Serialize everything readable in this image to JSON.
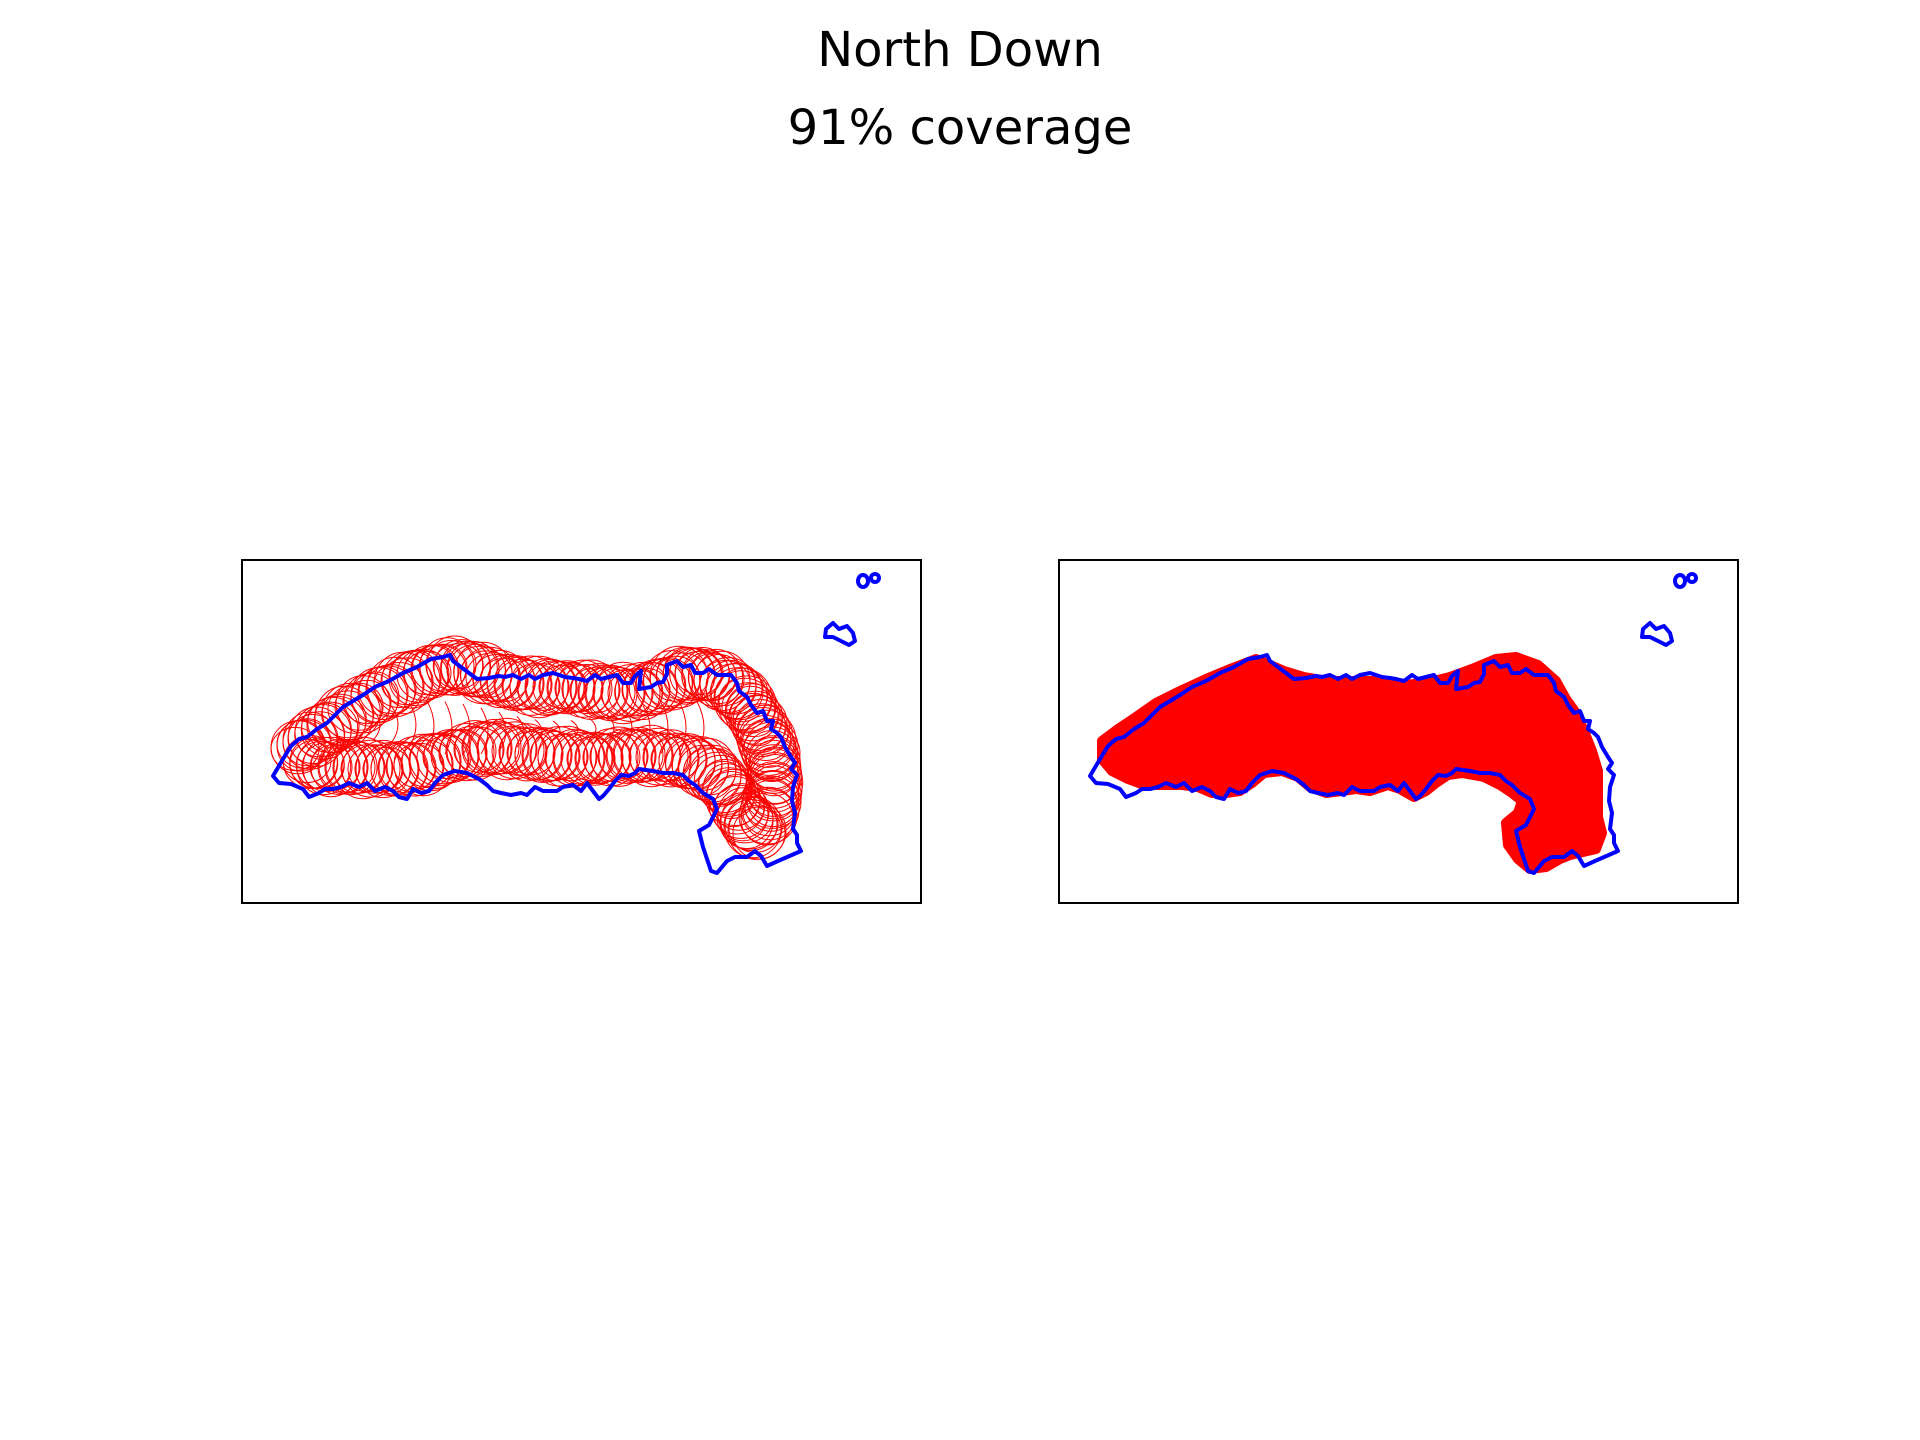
{
  "figure": {
    "title": "North Down",
    "subtitle": "91% coverage"
  },
  "colors": {
    "boundary": "#0000ff",
    "coverage": "#ff0000",
    "frame": "#000000",
    "background": "#ffffff"
  },
  "chart_data": [
    {
      "type": "map",
      "panel": "left",
      "layers": [
        "boundary outline",
        "individual coverage circles"
      ],
      "ticks": false,
      "grid": false
    },
    {
      "type": "map",
      "panel": "right",
      "layers": [
        "boundary outline",
        "merged coverage area"
      ],
      "ticks": false,
      "grid": false
    }
  ]
}
